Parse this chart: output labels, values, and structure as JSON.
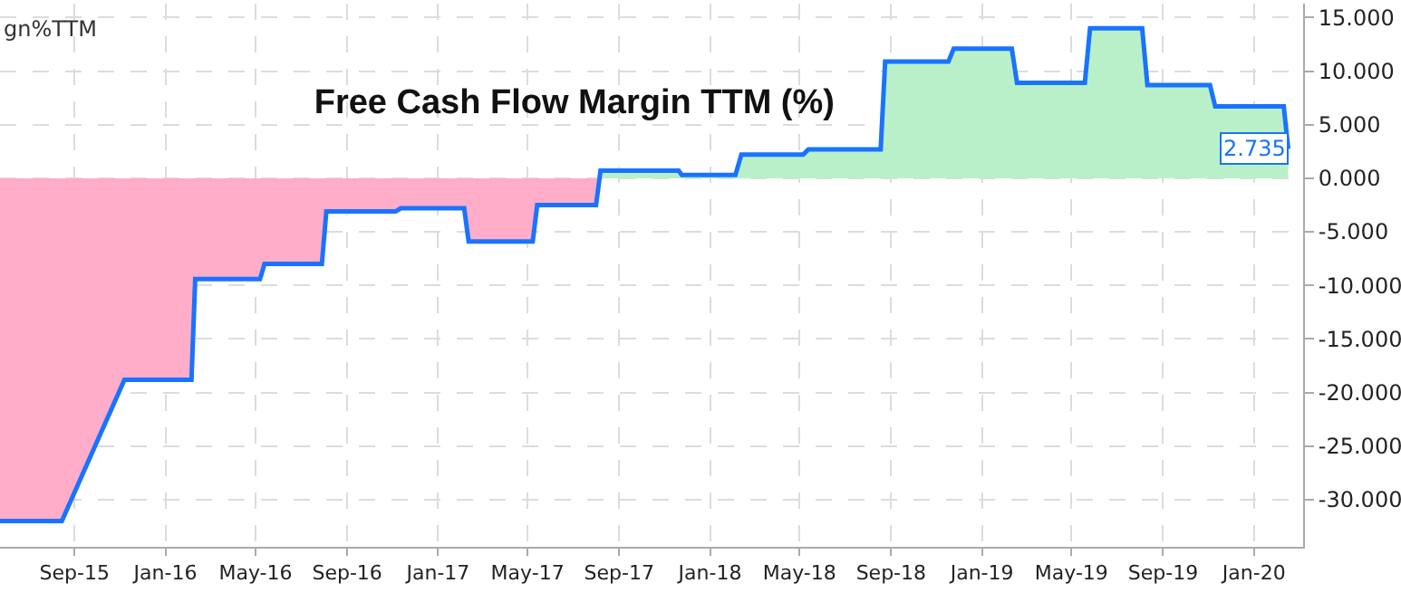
{
  "chart_data": {
    "type": "area",
    "title": "Free Cash Flow Margin TTM (%)",
    "annotations": [
      "gn%TTM",
      {
        "text": "2.735",
        "x": "2020-02-16",
        "y": 2.735
      }
    ],
    "series": [
      {
        "color": "#1a73ff",
        "colors": [
          "#ffadc8",
          "#ffadc8",
          "#ffadc8",
          "#ffadc8",
          "#ffadc8",
          "#ffadc8",
          "#ffadc8",
          "#ffadc8",
          "#ffadc8",
          "#ffadc8",
          "#ffadc8",
          "#ffadc8",
          "#ffadc8",
          "#ffadc8",
          "#ffadc8",
          "#ffadc8",
          "#b9f0c9",
          "#b9f0c9",
          "#b9f0c9",
          "#b9f0c9",
          "#b9f0c9",
          "#b9f0c9",
          "#b9f0c9",
          "#b9f0c9",
          "#b9f0c9",
          "#b9f0c9",
          "#b9f0c9",
          "#b9f0c9",
          "#b9f0c9",
          "#b9f0c9",
          "#b9f0c9",
          "#b9f0c9",
          "#b9f0c9",
          "#b9f0c9",
          "#b9f0c9",
          "#b9f0c9",
          "#b9f0c9"
        ],
        "x": [
          "2015-05-24",
          "2015-08-15",
          "2015-11-07",
          "2016-02-05",
          "2016-02-10",
          "2016-05-07",
          "2016-05-13",
          "2016-07-29",
          "2016-08-04",
          "2016-11-05",
          "2016-11-12",
          "2017-02-05",
          "2017-02-11",
          "2017-05-08",
          "2017-05-14",
          "2017-08-01",
          "2017-08-07",
          "2017-11-20",
          "2017-11-24",
          "2018-02-04",
          "2018-02-12",
          "2018-05-06",
          "2018-05-13",
          "2018-08-18",
          "2018-08-24",
          "2018-11-17",
          "2018-11-24",
          "2019-02-10",
          "2019-02-17",
          "2019-05-19",
          "2019-05-26",
          "2019-08-04",
          "2019-08-11",
          "2019-11-03",
          "2019-11-10",
          "2020-02-10",
          "2020-02-16"
        ],
        "values": [
          -32.0,
          -32.0,
          -18.8,
          -18.8,
          -9.4,
          -9.4,
          -8.0,
          -8.0,
          -3.1,
          -3.1,
          -2.8,
          -2.8,
          -5.9,
          -5.9,
          -2.5,
          -2.5,
          0.7,
          0.7,
          0.3,
          0.3,
          2.2,
          2.2,
          2.7,
          2.7,
          10.9,
          10.9,
          12.1,
          12.1,
          8.9,
          8.9,
          14.0,
          14.0,
          8.7,
          8.7,
          6.7,
          6.7,
          2.735
        ]
      }
    ],
    "xlim": [
      "2015-05-24",
      "2020-03-07"
    ],
    "xticks": [
      {
        "value": "2015-09-01",
        "label": "Sep-15"
      },
      {
        "value": "2016-01-01",
        "label": "Jan-16"
      },
      {
        "value": "2016-05-01",
        "label": "May-16"
      },
      {
        "value": "2016-09-01",
        "label": "Sep-16"
      },
      {
        "value": "2017-01-01",
        "label": "Jan-17"
      },
      {
        "value": "2017-05-01",
        "label": "May-17"
      },
      {
        "value": "2017-09-01",
        "label": "Sep-17"
      },
      {
        "value": "2018-01-01",
        "label": "Jan-18"
      },
      {
        "value": "2018-05-01",
        "label": "May-18"
      },
      {
        "value": "2018-09-01",
        "label": "Sep-18"
      },
      {
        "value": "2019-01-01",
        "label": "Jan-19"
      },
      {
        "value": "2019-05-01",
        "label": "May-19"
      },
      {
        "value": "2019-09-01",
        "label": "Sep-19"
      },
      {
        "value": "2020-01-01",
        "label": "Jan-20"
      }
    ],
    "ylim": [
      -34.4,
      16.3
    ],
    "yticks": [
      {
        "value": -30,
        "label": "-30.000"
      },
      {
        "value": -25,
        "label": "-25.000"
      },
      {
        "value": -20,
        "label": "-20.000"
      },
      {
        "value": -15,
        "label": "-15.000"
      },
      {
        "value": -10,
        "label": "-10.000"
      },
      {
        "value": -5,
        "label": "-5.000"
      },
      {
        "value": 0,
        "label": "0.000"
      },
      {
        "value": 5,
        "label": "5.000"
      },
      {
        "value": 10,
        "label": "10.000"
      },
      {
        "value": 15,
        "label": "15.000"
      }
    ],
    "grid": true,
    "line_style": "solid"
  }
}
